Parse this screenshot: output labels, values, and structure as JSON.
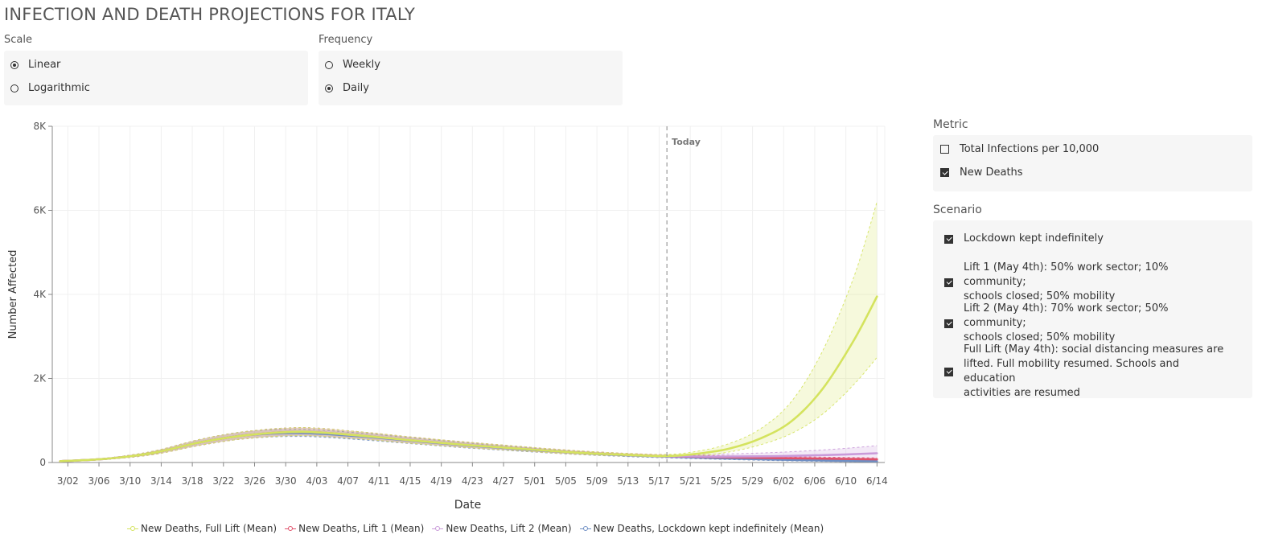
{
  "page_title": "INFECTION AND DEATH PROJECTIONS FOR ITALY",
  "scale": {
    "label": "Scale",
    "options": [
      "Linear",
      "Logarithmic"
    ],
    "selected": "Linear"
  },
  "frequency": {
    "label": "Frequency",
    "options": [
      "Weekly",
      "Daily"
    ],
    "selected": "Daily"
  },
  "metric": {
    "label": "Metric",
    "options": [
      {
        "label": "Total Infections per 10,000",
        "checked": false
      },
      {
        "label": "New Deaths",
        "checked": true
      }
    ]
  },
  "scenario": {
    "label": "Scenario",
    "options": [
      {
        "lines": [
          "Lockdown kept indefinitely"
        ],
        "checked": true
      },
      {
        "lines": [
          "Lift 1 (May 4th): 50% work sector; 10% community;",
          "schools closed; 50% mobility"
        ],
        "checked": true
      },
      {
        "lines": [
          "Lift 2 (May 4th): 70% work sector; 50% community;",
          "schools closed; 50% mobility"
        ],
        "checked": true
      },
      {
        "lines": [
          "Full Lift (May 4th): social distancing measures are",
          "lifted. Full mobility resumed. Schools and education",
          "activities are resumed"
        ],
        "checked": true
      }
    ]
  },
  "colors": {
    "full_lift": "#d4e35e",
    "lift1": "#e0506a",
    "lift2": "#c99ad9",
    "lockdown": "#6f8fc4"
  },
  "chart_data": {
    "type": "line",
    "xlabel": "Date",
    "ylabel": "Number Affected",
    "ylim": [
      0,
      8000
    ],
    "yticks": [
      0,
      2000,
      4000,
      6000,
      8000
    ],
    "ytick_labels": [
      "0",
      "2K",
      "4K",
      "6K",
      "8K"
    ],
    "x_domain": [
      "2020-02-29",
      "2020-06-15"
    ],
    "xticks": [
      "2020-03-02",
      "2020-03-06",
      "2020-03-10",
      "2020-03-14",
      "2020-03-18",
      "2020-03-22",
      "2020-03-26",
      "2020-03-30",
      "2020-04-03",
      "2020-04-07",
      "2020-04-11",
      "2020-04-15",
      "2020-04-19",
      "2020-04-23",
      "2020-04-27",
      "2020-05-01",
      "2020-05-05",
      "2020-05-09",
      "2020-05-13",
      "2020-05-17",
      "2020-05-21",
      "2020-05-25",
      "2020-05-29",
      "2020-06-02",
      "2020-06-06",
      "2020-06-10",
      "2020-06-14"
    ],
    "xtick_labels": [
      "3/02",
      "3/06",
      "3/10",
      "3/14",
      "3/18",
      "3/22",
      "3/26",
      "3/30",
      "4/03",
      "4/07",
      "4/11",
      "4/15",
      "4/19",
      "4/23",
      "4/27",
      "5/01",
      "5/05",
      "5/09",
      "5/13",
      "5/17",
      "5/21",
      "5/25",
      "5/29",
      "6/02",
      "6/06",
      "6/10",
      "6/14"
    ],
    "today": {
      "date": "2020-05-18",
      "label": "Today"
    },
    "grid": true,
    "legend_position": "bottom",
    "series": [
      {
        "key": "full_lift",
        "name": "New Deaths, Full Lift (Mean)",
        "dates": [
          "2020-03-01",
          "2020-03-07",
          "2020-03-13",
          "2020-03-19",
          "2020-03-25",
          "2020-04-01",
          "2020-04-08",
          "2020-04-15",
          "2020-04-22",
          "2020-04-29",
          "2020-05-06",
          "2020-05-13",
          "2020-05-18",
          "2020-05-22",
          "2020-05-26",
          "2020-05-30",
          "2020-06-03",
          "2020-06-07",
          "2020-06-11",
          "2020-06-14"
        ],
        "mean": [
          30,
          90,
          230,
          480,
          650,
          730,
          650,
          530,
          420,
          330,
          240,
          180,
          155,
          210,
          330,
          570,
          980,
          1750,
          2900,
          3950
        ],
        "lower": [
          25,
          75,
          190,
          410,
          570,
          640,
          570,
          460,
          360,
          280,
          200,
          150,
          125,
          160,
          250,
          420,
          690,
          1150,
          1850,
          2500
        ],
        "upper": [
          35,
          105,
          270,
          550,
          740,
          830,
          740,
          610,
          490,
          385,
          285,
          215,
          190,
          270,
          450,
          800,
          1450,
          2650,
          4400,
          6200
        ]
      },
      {
        "key": "lift1",
        "name": "New Deaths, Lift 1 (Mean)",
        "dates": [
          "2020-03-01",
          "2020-03-07",
          "2020-03-13",
          "2020-03-19",
          "2020-03-25",
          "2020-04-01",
          "2020-04-08",
          "2020-04-15",
          "2020-04-22",
          "2020-04-29",
          "2020-05-06",
          "2020-05-13",
          "2020-05-18",
          "2020-05-25",
          "2020-06-01",
          "2020-06-08",
          "2020-06-14"
        ],
        "mean": [
          30,
          90,
          230,
          480,
          650,
          730,
          650,
          530,
          420,
          330,
          240,
          180,
          150,
          125,
          105,
          90,
          75
        ],
        "lower": [
          25,
          75,
          190,
          410,
          570,
          640,
          570,
          460,
          360,
          280,
          200,
          150,
          120,
          95,
          75,
          60,
          45
        ],
        "upper": [
          35,
          105,
          270,
          550,
          740,
          830,
          740,
          610,
          490,
          385,
          285,
          215,
          185,
          160,
          140,
          125,
          110
        ]
      },
      {
        "key": "lift2",
        "name": "New Deaths, Lift 2 (Mean)",
        "dates": [
          "2020-03-01",
          "2020-03-07",
          "2020-03-13",
          "2020-03-19",
          "2020-03-25",
          "2020-04-01",
          "2020-04-08",
          "2020-04-15",
          "2020-04-22",
          "2020-04-29",
          "2020-05-06",
          "2020-05-13",
          "2020-05-18",
          "2020-05-25",
          "2020-06-01",
          "2020-06-08",
          "2020-06-14"
        ],
        "mean": [
          30,
          90,
          230,
          480,
          650,
          730,
          650,
          530,
          420,
          330,
          240,
          180,
          150,
          140,
          150,
          180,
          220
        ],
        "lower": [
          25,
          75,
          190,
          410,
          570,
          640,
          570,
          460,
          360,
          280,
          200,
          150,
          120,
          95,
          85,
          85,
          90
        ],
        "upper": [
          35,
          105,
          270,
          550,
          740,
          830,
          740,
          610,
          490,
          385,
          285,
          215,
          185,
          200,
          240,
          310,
          400
        ]
      },
      {
        "key": "lockdown",
        "name": "New Deaths, Lockdown kept indefinitely (Mean)",
        "dates": [
          "2020-03-01",
          "2020-03-07",
          "2020-03-13",
          "2020-03-19",
          "2020-03-25",
          "2020-04-01",
          "2020-04-08",
          "2020-04-15",
          "2020-04-22",
          "2020-04-29",
          "2020-05-06",
          "2020-05-13",
          "2020-05-18",
          "2020-05-25",
          "2020-06-01",
          "2020-06-08",
          "2020-06-14"
        ],
        "mean": [
          30,
          90,
          230,
          480,
          650,
          700,
          630,
          520,
          410,
          320,
          235,
          170,
          140,
          100,
          70,
          45,
          30
        ],
        "lower": [
          25,
          75,
          190,
          410,
          570,
          620,
          550,
          450,
          350,
          270,
          195,
          140,
          110,
          75,
          45,
          25,
          15
        ],
        "upper": [
          35,
          105,
          270,
          550,
          740,
          790,
          710,
          590,
          470,
          370,
          275,
          205,
          170,
          130,
          95,
          70,
          50
        ]
      }
    ]
  }
}
